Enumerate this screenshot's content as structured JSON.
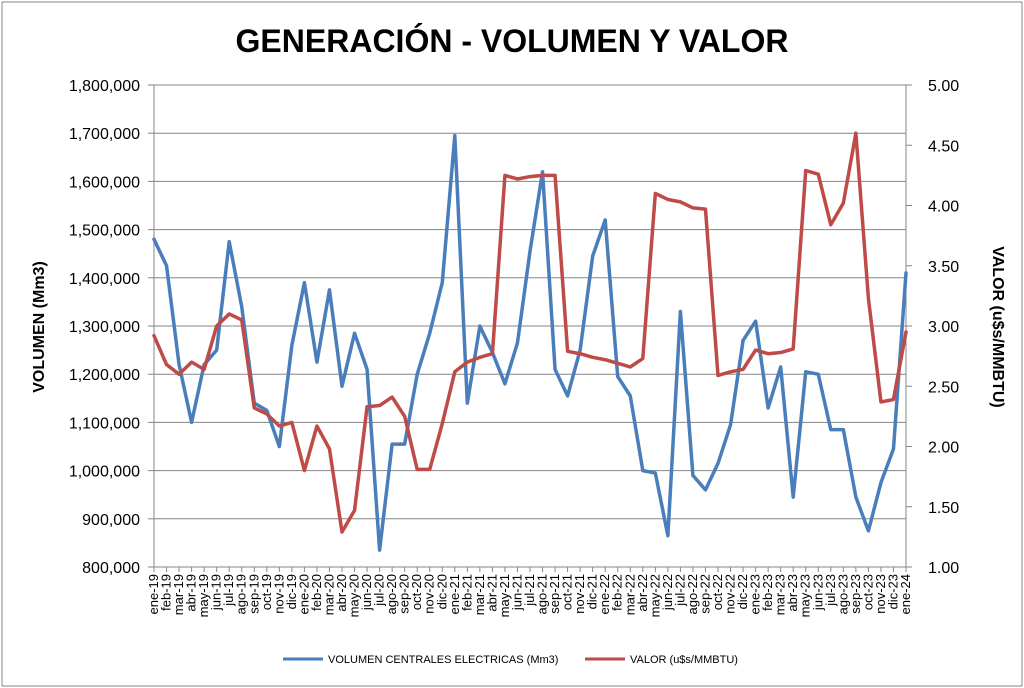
{
  "chart_data": {
    "type": "line",
    "title": "GENERACIÓN - VOLUMEN Y VALOR",
    "xlabel": "",
    "ylabel": "VOLUMEN (Mm3)",
    "y2label": "VALOR (u$s/MMBTU)",
    "ylim": [
      800000,
      1800000
    ],
    "y2lim": [
      1.0,
      5.0
    ],
    "yticks": [
      "800,000",
      "900,000",
      "1,000,000",
      "1,100,000",
      "1,200,000",
      "1,300,000",
      "1,400,000",
      "1,500,000",
      "1,600,000",
      "1,700,000",
      "1,800,000"
    ],
    "y2ticks": [
      "1.00",
      "1.50",
      "2.00",
      "2.50",
      "3.00",
      "3.50",
      "4.00",
      "4.50",
      "5.00"
    ],
    "grid": "horizontal",
    "legend": "bottom",
    "categories": [
      "ene-19",
      "feb-19",
      "mar-19",
      "abr-19",
      "may-19",
      "jun-19",
      "jul-19",
      "ago-19",
      "sep-19",
      "oct-19",
      "nov-19",
      "dic-19",
      "ene-20",
      "feb-20",
      "mar-20",
      "abr-20",
      "may-20",
      "jun-20",
      "jul-20",
      "ago-20",
      "sep-20",
      "oct-20",
      "nov-20",
      "dic-20",
      "ene-21",
      "feb-21",
      "mar-21",
      "abr-21",
      "may-21",
      "jun-21",
      "jul-21",
      "ago-21",
      "sep-21",
      "oct-21",
      "nov-21",
      "dic-21",
      "ene-22",
      "feb-22",
      "mar-22",
      "abr-22",
      "may-22",
      "jun-22",
      "jul-22",
      "ago-22",
      "sep-22",
      "oct-22",
      "nov-22",
      "dic-22",
      "ene-23",
      "feb-23",
      "mar-23",
      "abr-23",
      "may-23",
      "jun-23",
      "jul-23",
      "ago-23",
      "sep-23",
      "oct-23",
      "nov-23",
      "dic-23",
      "ene-24"
    ],
    "series": [
      {
        "name": "VOLUMEN CENTRALES ELECTRICAS (Mm3)",
        "axis": "left",
        "color": "#4A7EBB",
        "values": [
          1480000,
          1425000,
          1220000,
          1100000,
          1220000,
          1250000,
          1475000,
          1340000,
          1140000,
          1125000,
          1050000,
          1260000,
          1390000,
          1225000,
          1375000,
          1175000,
          1285000,
          1210000,
          835000,
          1055000,
          1055000,
          1200000,
          1285000,
          1390000,
          1695000,
          1140000,
          1300000,
          1245000,
          1180000,
          1265000,
          1455000,
          1620000,
          1210000,
          1155000,
          1250000,
          1445000,
          1520000,
          1195000,
          1155000,
          1000000,
          995000,
          865000,
          1330000,
          990000,
          960000,
          1015000,
          1095000,
          1270000,
          1310000,
          1130000,
          1215000,
          945000,
          1205000,
          1200000,
          1085000,
          1085000,
          945000,
          875000,
          975000,
          1045000,
          1410000
        ]
      },
      {
        "name": "VALOR (u$s/MMBTU)",
        "axis": "right",
        "color": "#BE4B48",
        "values": [
          2.92,
          2.68,
          2.6,
          2.7,
          2.64,
          3.0,
          3.1,
          3.05,
          2.32,
          2.27,
          2.17,
          2.2,
          1.8,
          2.17,
          1.98,
          1.29,
          1.47,
          2.33,
          2.34,
          2.41,
          2.25,
          1.81,
          1.81,
          2.19,
          2.62,
          2.7,
          2.74,
          2.77,
          4.25,
          4.22,
          4.24,
          4.25,
          4.25,
          2.79,
          2.77,
          2.74,
          2.72,
          2.69,
          2.66,
          2.73,
          4.1,
          4.05,
          4.03,
          3.98,
          3.97,
          2.59,
          2.62,
          2.64,
          2.8,
          2.77,
          2.78,
          2.81,
          4.29,
          4.26,
          3.84,
          4.02,
          4.6,
          3.23,
          2.37,
          2.39,
          2.95
        ]
      }
    ]
  }
}
